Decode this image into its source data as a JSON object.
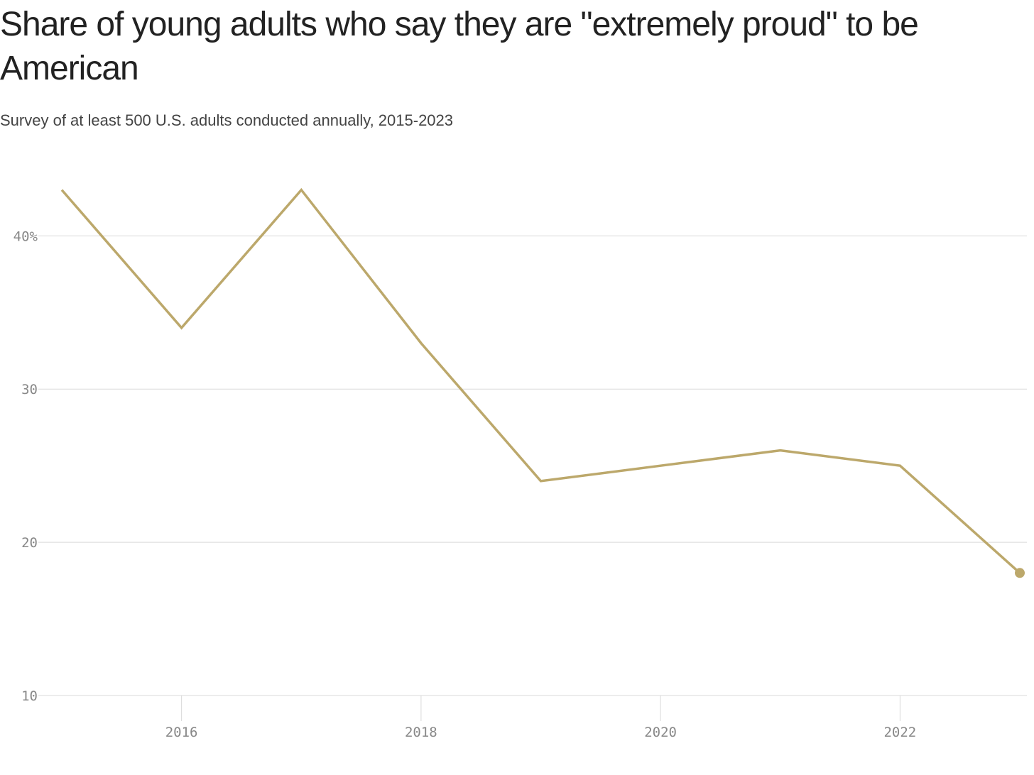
{
  "chart_data": {
    "type": "line",
    "title": "Share of young adults who say they are \"extremely proud\" to be American",
    "subtitle": "Survey of at least 500 U.S. adults conducted annually, 2015-2023",
    "x": [
      2015,
      2016,
      2017,
      2018,
      2019,
      2020,
      2021,
      2022,
      2023
    ],
    "series": [
      {
        "values": [
          43,
          34,
          43,
          33,
          24,
          25,
          26,
          25,
          18
        ]
      }
    ],
    "xlim": [
      2015,
      2023
    ],
    "ylim": [
      10,
      44
    ],
    "y_ticks": [
      10,
      20,
      30,
      40
    ],
    "y_tick_labels": [
      "10",
      "20",
      "30",
      "40%"
    ],
    "x_ticks": [
      2016,
      2018,
      2020,
      2022
    ],
    "x_tick_labels": [
      "2016",
      "2018",
      "2020",
      "2022"
    ],
    "xlabel": "",
    "ylabel": "",
    "grid": "horizontal",
    "legend": "none",
    "end_marker": true,
    "colors": {
      "line": "#bca86b",
      "grid": "#d9d9d9",
      "tick_text": "#888888",
      "title": "#222222",
      "subtitle": "#444444"
    }
  }
}
